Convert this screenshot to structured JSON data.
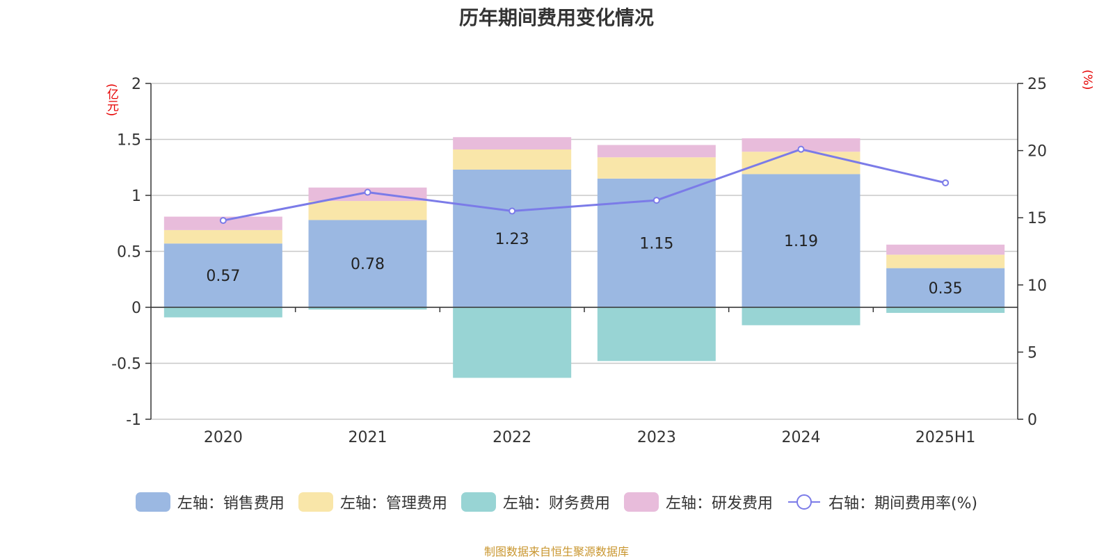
{
  "title": "历年期间费用变化情况",
  "left_unit": "(亿元)",
  "right_unit": "(%)",
  "source": "制图数据来自恒生聚源数据库",
  "chart_data": {
    "type": "bar",
    "stacked": true,
    "categories": [
      "2020",
      "2021",
      "2022",
      "2023",
      "2024",
      "2025H1"
    ],
    "y_left": {
      "lim": [
        -1,
        2
      ],
      "ticks": [
        "2",
        "1.5",
        "1",
        "0.5",
        "0",
        "-0.5",
        "-1"
      ],
      "tick_values": [
        2,
        1.5,
        1,
        0.5,
        0,
        -0.5,
        -1
      ]
    },
    "y_right": {
      "lim": [
        0,
        25
      ],
      "ticks": [
        "25",
        "20",
        "15",
        "10",
        "5",
        "0"
      ],
      "tick_values": [
        25,
        20,
        15,
        10,
        5,
        0
      ]
    },
    "series": [
      {
        "name": "左轴：销售费用",
        "axis": "left",
        "color": "#9bb8e2",
        "values": [
          0.57,
          0.78,
          1.23,
          1.15,
          1.19,
          0.35
        ],
        "labels": [
          "0.57",
          "0.78",
          "1.23",
          "1.15",
          "1.19",
          "0.35"
        ]
      },
      {
        "name": "左轴：管理费用",
        "axis": "left",
        "color": "#f9e6a9",
        "values": [
          0.12,
          0.17,
          0.18,
          0.19,
          0.2,
          0.12
        ]
      },
      {
        "name": "左轴：财务费用",
        "axis": "left",
        "color": "#98d4d4",
        "values": [
          -0.09,
          -0.02,
          -0.63,
          -0.48,
          -0.16,
          -0.05
        ]
      },
      {
        "name": "左轴：研发费用",
        "axis": "left",
        "color": "#e8bcdb",
        "values": [
          0.12,
          0.12,
          0.11,
          0.11,
          0.12,
          0.09
        ]
      },
      {
        "name": "右轴：期间费用率(%)",
        "axis": "right",
        "type": "line",
        "color": "#7b7be8",
        "values": [
          14.8,
          16.9,
          15.5,
          16.3,
          20.1,
          17.6
        ]
      }
    ],
    "grid": true,
    "legend_position": "bottom"
  }
}
